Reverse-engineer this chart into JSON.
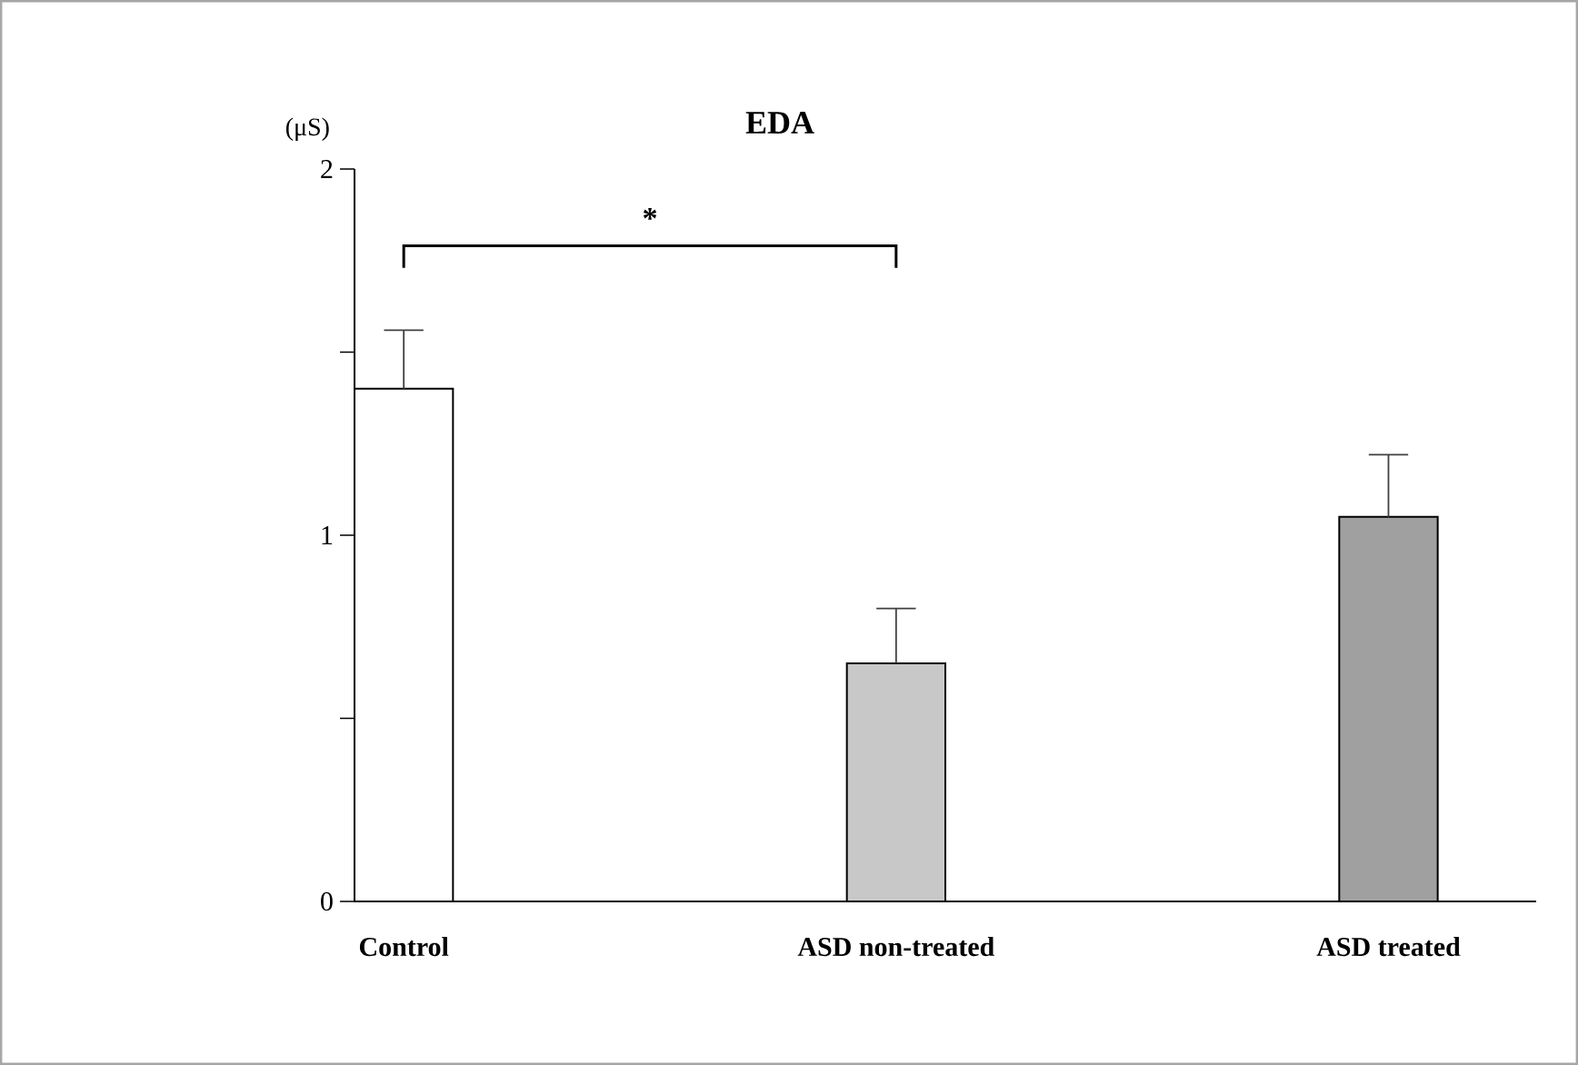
{
  "chart_data": {
    "type": "bar",
    "title": "EDA",
    "ylabel": "(μS)",
    "categories": [
      "Control",
      "ASD non-treated",
      "ASD treated"
    ],
    "values": [
      1.4,
      0.65,
      1.05
    ],
    "colors": [
      "#ffffff",
      "#c8c8c8",
      "#a0a0a0"
    ],
    "errors": [
      [
        1.4,
        1.56
      ],
      [
        0.65,
        0.8
      ],
      [
        1.05,
        1.22
      ]
    ],
    "ylim": [
      0,
      2
    ],
    "yticks": [
      0,
      {
        "value": 0.5,
        "label": null
      },
      1,
      {
        "value": 1.5,
        "label": null
      },
      2
    ],
    "annotations": [
      "*"
    ],
    "grid": false
  }
}
